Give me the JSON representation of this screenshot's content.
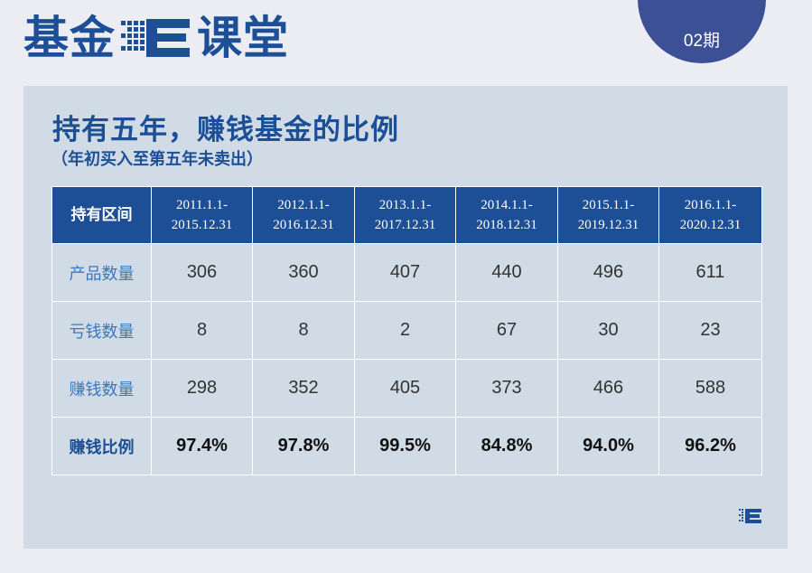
{
  "brand": {
    "left_text": "基金",
    "right_text": "课堂",
    "logo_icon": "E-pixel-logo-icon"
  },
  "issue": {
    "label": "02期"
  },
  "heading": {
    "title": "持有五年，赚钱基金的比例",
    "subtitle": "（年初买入至第五年未卖出）"
  },
  "table": {
    "header_label": "持有区间",
    "periods": [
      {
        "start": "2011.1.1-",
        "end": "2015.12.31"
      },
      {
        "start": "2012.1.1-",
        "end": "2016.12.31"
      },
      {
        "start": "2013.1.1-",
        "end": "2017.12.31"
      },
      {
        "start": "2014.1.1-",
        "end": "2018.12.31"
      },
      {
        "start": "2015.1.1-",
        "end": "2019.12.31"
      },
      {
        "start": "2016.1.1-",
        "end": "2020.12.31"
      }
    ],
    "rows": [
      {
        "label": "产品数量",
        "values": [
          "306",
          "360",
          "407",
          "440",
          "496",
          "611"
        ]
      },
      {
        "label": "亏钱数量",
        "values": [
          "8",
          "8",
          "2",
          "67",
          "30",
          "23"
        ]
      },
      {
        "label": "赚钱数量",
        "values": [
          "298",
          "352",
          "405",
          "373",
          "466",
          "588"
        ]
      },
      {
        "label": "赚钱比例",
        "values": [
          "97.4%",
          "97.8%",
          "99.5%",
          "84.8%",
          "94.0%",
          "96.2%"
        ]
      }
    ]
  },
  "colors": {
    "brand_blue": "#1c4f96",
    "badge_blue": "#3c5096",
    "card_bg": "#d1dbe6",
    "row_label_blue": "#3a78c0"
  }
}
